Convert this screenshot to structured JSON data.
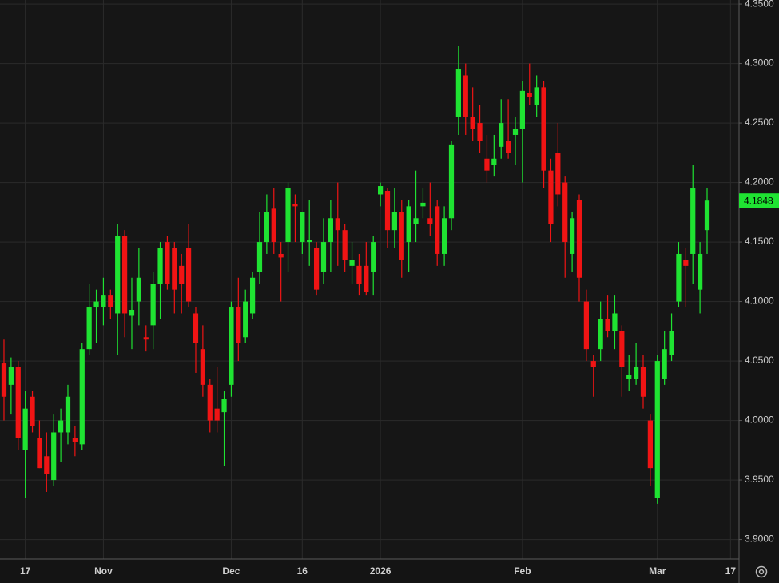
{
  "chart_data": {
    "type": "candlestick",
    "open": [
      4.048,
      4.03,
      4.045,
      3.975,
      4.02,
      3.985,
      3.97,
      3.95,
      3.99,
      3.99,
      3.985,
      3.98,
      4.06,
      4.095,
      4.095,
      4.105,
      4.09,
      4.155,
      4.088,
      4.1,
      4.07,
      4.08,
      4.115,
      4.15,
      4.145,
      4.13,
      4.145,
      4.09,
      4.06,
      4.03,
      4.01,
      4.007,
      4.03,
      4.095,
      4.07,
      4.09,
      4.125,
      4.15,
      4.178,
      4.14,
      4.15,
      4.182,
      4.15,
      4.15,
      4.145,
      4.125,
      4.15,
      4.17,
      4.16,
      4.13,
      4.13,
      4.13,
      4.125,
      4.19,
      4.193,
      4.16,
      4.175,
      4.15,
      4.165,
      4.18,
      4.17,
      4.18,
      4.14,
      4.17,
      4.255,
      4.29,
      4.255,
      4.25,
      4.22,
      4.215,
      4.23,
      4.235,
      4.24,
      4.245,
      4.275,
      4.265,
      4.28,
      4.21,
      4.225,
      4.2,
      4.14,
      4.185,
      4.1,
      4.05,
      4.06,
      4.085,
      4.075,
      4.075,
      4.035,
      4.035,
      4.045,
      4.0,
      3.935,
      4.035,
      4.055,
      4.1,
      4.135,
      4.14,
      4.11,
      4.16
    ],
    "high": [
      4.068,
      4.053,
      4.05,
      4.025,
      4.025,
      4.0,
      3.99,
      4.005,
      4.01,
      4.03,
      3.995,
      4.065,
      4.115,
      4.11,
      4.12,
      4.11,
      4.165,
      4.16,
      4.12,
      4.145,
      4.08,
      4.125,
      4.15,
      4.155,
      4.15,
      4.14,
      4.165,
      4.095,
      4.08,
      4.035,
      4.045,
      4.025,
      4.1,
      4.12,
      4.11,
      4.125,
      4.175,
      4.19,
      4.195,
      4.15,
      4.2,
      4.19,
      4.175,
      4.185,
      4.15,
      4.17,
      4.185,
      4.2,
      4.165,
      4.15,
      4.14,
      4.15,
      4.155,
      4.2,
      4.195,
      4.195,
      4.185,
      4.185,
      4.21,
      4.195,
      4.2,
      4.185,
      4.18,
      4.235,
      4.315,
      4.3,
      4.28,
      4.265,
      4.24,
      4.24,
      4.27,
      4.27,
      4.255,
      4.285,
      4.3,
      4.29,
      4.285,
      4.22,
      4.25,
      4.205,
      4.175,
      4.19,
      4.11,
      4.055,
      4.1,
      4.105,
      4.105,
      4.08,
      4.055,
      4.065,
      4.055,
      4.005,
      4.055,
      4.075,
      4.09,
      4.15,
      4.145,
      4.215,
      4.15,
      4.195
    ],
    "low": [
      4.0,
      4.005,
      3.975,
      3.935,
      3.99,
      3.96,
      3.94,
      3.945,
      3.965,
      3.98,
      3.97,
      3.975,
      4.055,
      4.065,
      4.08,
      4.085,
      4.055,
      4.07,
      4.06,
      4.08,
      4.058,
      4.06,
      4.085,
      4.11,
      4.09,
      4.09,
      4.095,
      4.04,
      4.02,
      3.99,
      3.99,
      3.962,
      4.02,
      4.05,
      4.065,
      4.085,
      4.115,
      4.14,
      4.14,
      4.1,
      4.125,
      4.15,
      4.14,
      4.13,
      4.105,
      4.115,
      4.125,
      4.13,
      4.125,
      4.115,
      4.105,
      4.105,
      4.105,
      4.18,
      4.145,
      4.145,
      4.12,
      4.125,
      4.15,
      4.17,
      4.155,
      4.13,
      4.13,
      4.16,
      4.24,
      4.24,
      4.235,
      4.225,
      4.2,
      4.205,
      4.22,
      4.22,
      4.215,
      4.2,
      4.265,
      4.255,
      4.195,
      4.15,
      4.18,
      4.12,
      4.125,
      4.1,
      4.05,
      4.02,
      4.05,
      4.07,
      4.06,
      4.02,
      4.025,
      4.03,
      4.01,
      3.945,
      3.93,
      4.03,
      4.05,
      4.095,
      4.095,
      4.115,
      4.09,
      4.14
    ],
    "close": [
      4.02,
      4.045,
      3.985,
      4.01,
      3.995,
      3.96,
      3.955,
      3.99,
      4.0,
      4.02,
      3.982,
      4.06,
      4.095,
      4.1,
      4.105,
      4.095,
      4.155,
      4.09,
      4.093,
      4.12,
      4.068,
      4.115,
      4.145,
      4.115,
      4.11,
      4.115,
      4.1,
      4.065,
      4.03,
      4.0,
      4.0,
      4.018,
      4.095,
      4.065,
      4.1,
      4.12,
      4.15,
      4.175,
      4.15,
      4.137,
      4.195,
      4.18,
      4.175,
      4.152,
      4.11,
      4.15,
      4.17,
      4.16,
      4.135,
      4.135,
      4.115,
      4.108,
      4.15,
      4.197,
      4.16,
      4.175,
      4.135,
      4.18,
      4.17,
      4.183,
      4.165,
      4.14,
      4.17,
      4.232,
      4.295,
      4.255,
      4.245,
      4.235,
      4.21,
      4.22,
      4.25,
      4.225,
      4.245,
      4.277,
      4.272,
      4.28,
      4.21,
      4.165,
      4.19,
      4.15,
      4.17,
      4.12,
      4.06,
      4.045,
      4.085,
      4.075,
      4.09,
      4.045,
      4.038,
      4.045,
      4.02,
      3.96,
      4.05,
      4.06,
      4.075,
      4.14,
      4.13,
      4.195,
      4.14,
      4.1848
    ],
    "up_color": "#1fe332",
    "down_color": "#f01414",
    "ylim": [
      3.8836,
      4.3534
    ],
    "yticks": [
      {
        "value": 3.9,
        "label": "3.9000"
      },
      {
        "value": 3.95,
        "label": "3.9500"
      },
      {
        "value": 4.0,
        "label": "4.0000"
      },
      {
        "value": 4.05,
        "label": "4.0500"
      },
      {
        "value": 4.1,
        "label": "4.1000"
      },
      {
        "value": 4.15,
        "label": "4.1500"
      },
      {
        "value": 4.2,
        "label": "4.2000"
      },
      {
        "value": 4.25,
        "label": "4.2500"
      },
      {
        "value": 4.3,
        "label": "4.3000"
      },
      {
        "value": 4.35,
        "label": "4.3500"
      }
    ],
    "xlim": [
      -0.56,
      103.5
    ],
    "xticks": [
      {
        "value": 3,
        "label": "17"
      },
      {
        "value": 14,
        "label": "Nov"
      },
      {
        "value": 32,
        "label": "Dec"
      },
      {
        "value": 42,
        "label": "16"
      },
      {
        "value": 53,
        "label": "2026"
      },
      {
        "value": 73,
        "label": "Feb"
      },
      {
        "value": 92,
        "label": "Mar"
      },
      {
        "value": 102.3,
        "label": "17"
      }
    ],
    "grid": true
  }
}
